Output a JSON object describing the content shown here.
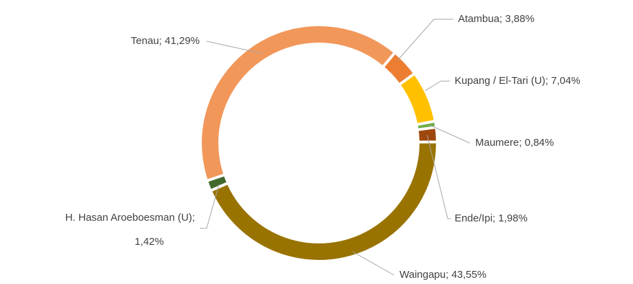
{
  "chart_data": {
    "type": "donut",
    "labels": [
      "Atambua; 3,88%",
      "Kupang / El-Tari (U); 7,04%",
      "Maumere; 0,84%",
      "Ende/Ipi; 1,98%",
      "Waingapu; 43,55%",
      "H. Hasan Aroeboesman (U); 1,42%",
      "Tenau; 41,29%"
    ],
    "values": [
      3.88,
      7.04,
      0.84,
      1.98,
      43.55,
      1.42,
      41.29
    ],
    "colors": [
      "#ed7d31",
      "#ffc000",
      "#70ad47",
      "#9e480e",
      "#997300",
      "#43682b",
      "#f1975a"
    ]
  }
}
